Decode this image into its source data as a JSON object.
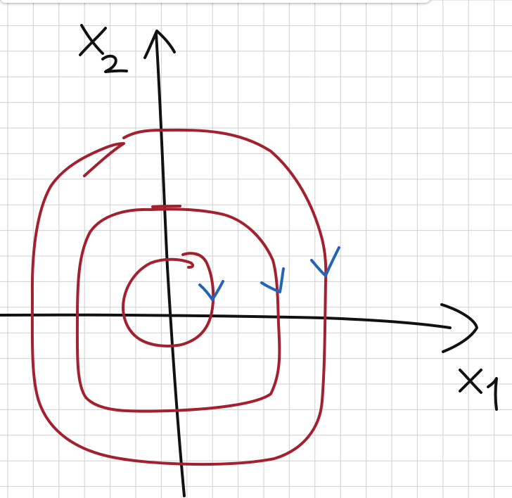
{
  "diagram": {
    "axis_labels": {
      "horizontal": "x1",
      "vertical": "x2"
    },
    "colors": {
      "background": "#ffffff",
      "grid": "#cfcfcf",
      "axes": "#111111",
      "trajectory": "#a3212f",
      "direction_arrows": "#2563b8"
    },
    "trajectory_style": "spiral converging toward origin",
    "direction": "clockwise"
  }
}
